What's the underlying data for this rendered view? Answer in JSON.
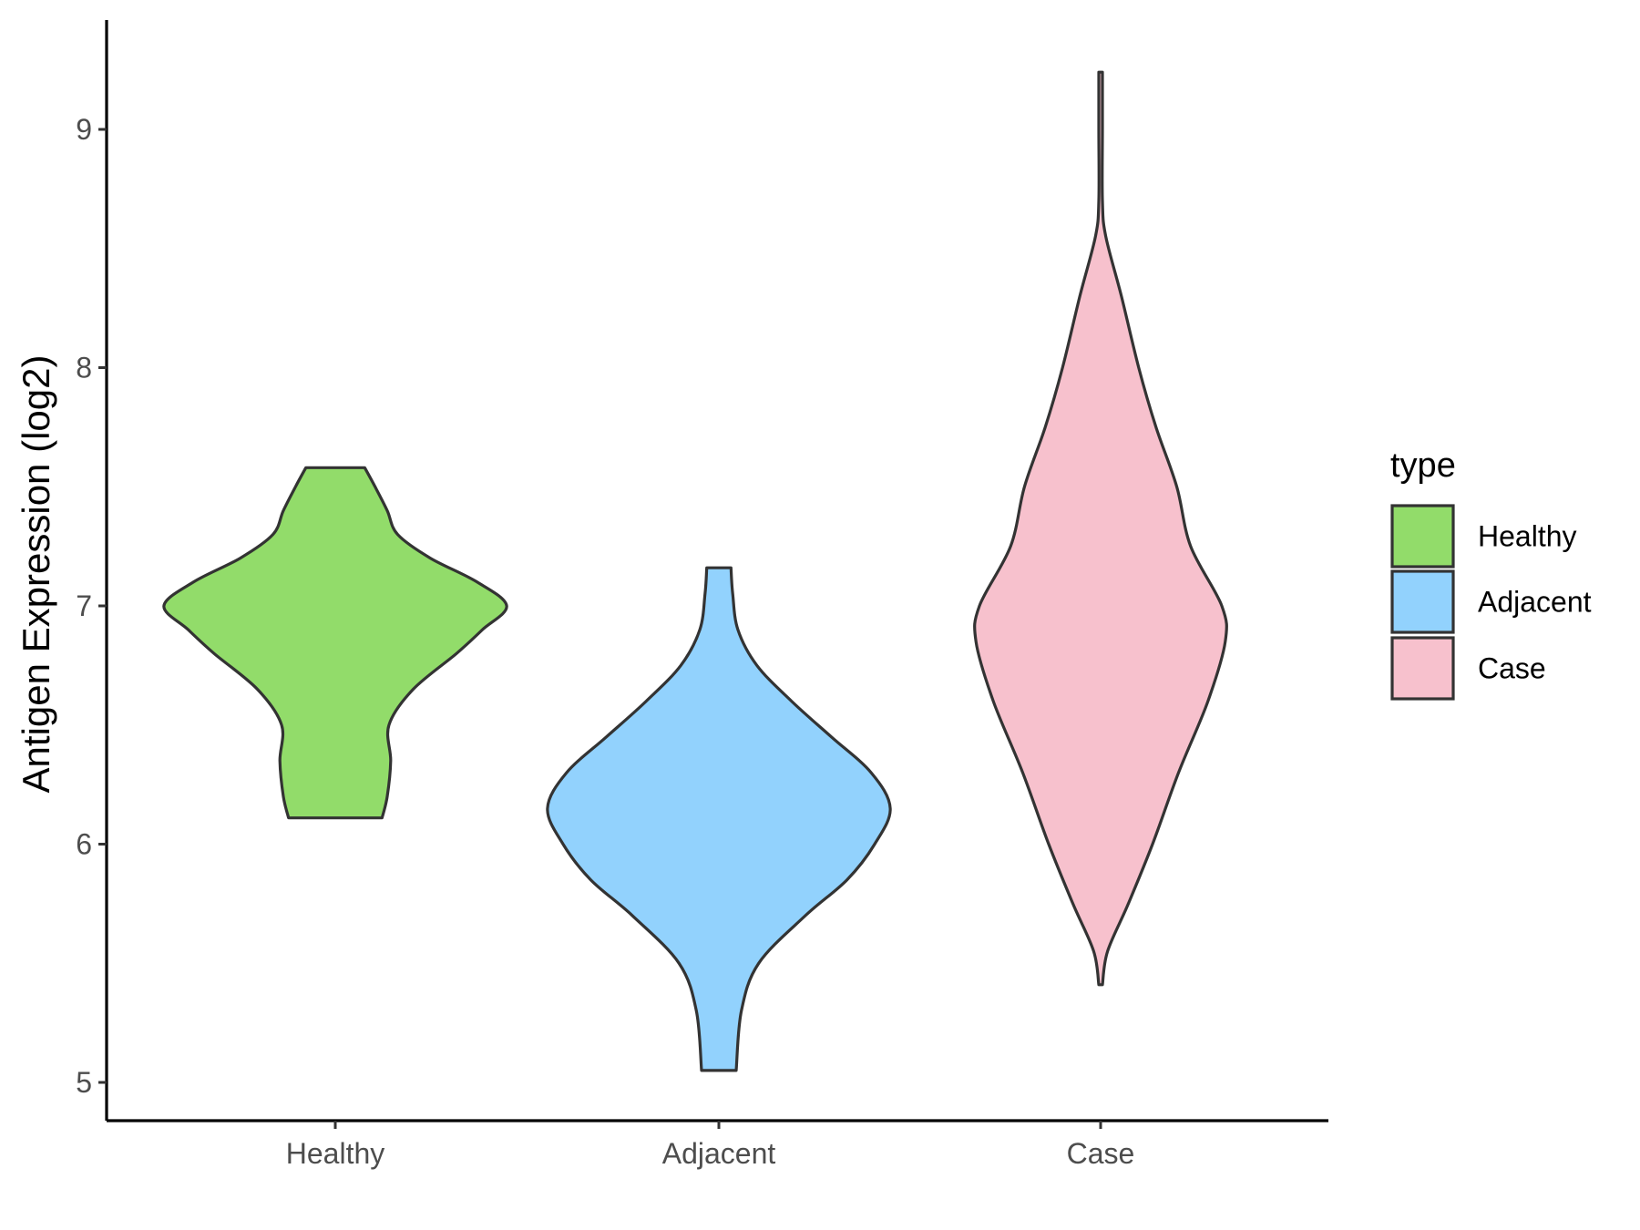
{
  "chart_data": {
    "type": "violin",
    "ylabel": "Antigen Expression (log2)",
    "xlabel": "",
    "categories": [
      "Healthy",
      "Adjacent",
      "Case"
    ],
    "ylim": [
      4.85,
      9.45
    ],
    "yticks": [
      5,
      6,
      7,
      8,
      9
    ],
    "grid": false,
    "legend": {
      "title": "type",
      "position": "right",
      "entries": [
        "Healthy",
        "Adjacent",
        "Case"
      ]
    },
    "colors": {
      "Healthy": "#92dc6a",
      "Adjacent": "#92d2fd",
      "Case": "#f7c1cd",
      "outline": "#333333"
    },
    "series": [
      {
        "name": "Healthy",
        "range": [
          6.11,
          7.58
        ],
        "density_profile": [
          [
            6.11,
            0.27
          ],
          [
            6.2,
            0.3
          ],
          [
            6.35,
            0.32
          ],
          [
            6.5,
            0.31
          ],
          [
            6.65,
            0.45
          ],
          [
            6.8,
            0.7
          ],
          [
            6.9,
            0.85
          ],
          [
            7.0,
            0.99
          ],
          [
            7.1,
            0.82
          ],
          [
            7.2,
            0.55
          ],
          [
            7.3,
            0.36
          ],
          [
            7.4,
            0.3
          ],
          [
            7.5,
            0.23
          ],
          [
            7.58,
            0.17
          ]
        ]
      },
      {
        "name": "Adjacent",
        "range": [
          5.05,
          7.16
        ],
        "density_profile": [
          [
            5.05,
            0.1
          ],
          [
            5.3,
            0.13
          ],
          [
            5.5,
            0.23
          ],
          [
            5.7,
            0.5
          ],
          [
            5.85,
            0.74
          ],
          [
            6.0,
            0.9
          ],
          [
            6.15,
            0.99
          ],
          [
            6.3,
            0.88
          ],
          [
            6.45,
            0.65
          ],
          [
            6.6,
            0.42
          ],
          [
            6.75,
            0.22
          ],
          [
            6.9,
            0.11
          ],
          [
            7.05,
            0.08
          ],
          [
            7.16,
            0.07
          ]
        ]
      },
      {
        "name": "Case",
        "range": [
          5.41,
          9.24
        ],
        "density_profile": [
          [
            5.41,
            0.0
          ],
          [
            5.55,
            0.04
          ],
          [
            5.75,
            0.16
          ],
          [
            6.0,
            0.3
          ],
          [
            6.3,
            0.45
          ],
          [
            6.6,
            0.62
          ],
          [
            6.85,
            0.72
          ],
          [
            7.0,
            0.7
          ],
          [
            7.25,
            0.52
          ],
          [
            7.5,
            0.44
          ],
          [
            7.75,
            0.32
          ],
          [
            8.0,
            0.22
          ],
          [
            8.3,
            0.12
          ],
          [
            8.55,
            0.03
          ],
          [
            8.7,
            0.01
          ],
          [
            9.0,
            0.01
          ],
          [
            9.24,
            0.01
          ]
        ]
      }
    ]
  }
}
